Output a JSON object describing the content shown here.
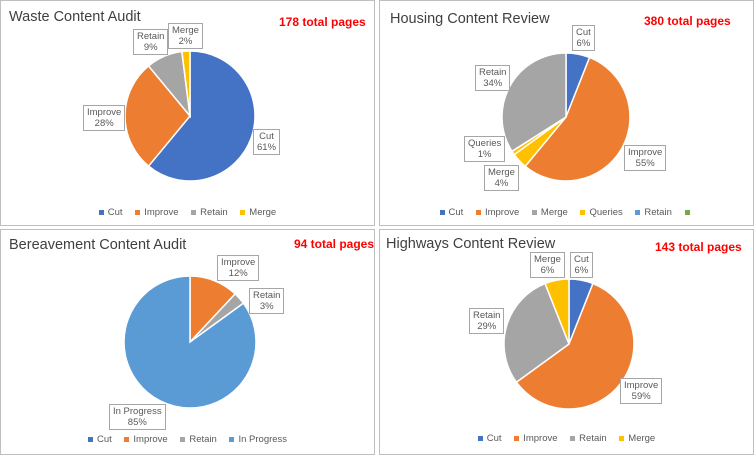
{
  "colors": {
    "Cut": "#4472c4",
    "Improve": "#ed7d31",
    "Retain": "#a5a5a5",
    "Merge": "#ffc000",
    "Queries": "#ffc000",
    "In Progress": "#5b9bd5",
    "blank": "#70ad47"
  },
  "panels": [
    {
      "title": "Waste Content Audit",
      "total": "178 total pages",
      "chart_data": {
        "type": "pie",
        "title": "Waste Content Audit",
        "slices": [
          {
            "name": "Cut",
            "value": 61,
            "label": "61%"
          },
          {
            "name": "Improve",
            "value": 28,
            "label": "28%"
          },
          {
            "name": "Retain",
            "value": 9,
            "label": "9%"
          },
          {
            "name": "Merge",
            "value": 2,
            "label": "2%"
          }
        ],
        "legend": [
          "Cut",
          "Improve",
          "Retain",
          "Merge"
        ],
        "legend_position": "bottom"
      }
    },
    {
      "title": "Housing Content Review",
      "total": "380 total pages",
      "chart_data": {
        "type": "pie",
        "title": "Housing Content Review",
        "slices": [
          {
            "name": "Cut",
            "value": 6,
            "label": "6%"
          },
          {
            "name": "Improve",
            "value": 55,
            "label": "55%"
          },
          {
            "name": "Merge",
            "value": 4,
            "label": "4%"
          },
          {
            "name": "Queries",
            "value": 1,
            "label": "1%"
          },
          {
            "name": "Retain",
            "value": 34,
            "label": "34%"
          }
        ],
        "legend": [
          "Cut",
          "Improve",
          "Merge",
          "Queries",
          "Retain",
          ""
        ],
        "legend_position": "bottom"
      }
    },
    {
      "title": "Bereavement Content Audit",
      "total": "94 total pages",
      "chart_data": {
        "type": "pie",
        "title": "Bereavement Content Audit",
        "slices": [
          {
            "name": "Improve",
            "value": 12,
            "label": "12%"
          },
          {
            "name": "Retain",
            "value": 3,
            "label": "3%"
          },
          {
            "name": "In Progress",
            "value": 85,
            "label": "85%"
          }
        ],
        "legend": [
          "Cut",
          "Improve",
          "Retain",
          "In Progress"
        ],
        "legend_position": "bottom"
      }
    },
    {
      "title": "Highways Content Review",
      "total": "143 total pages",
      "chart_data": {
        "type": "pie",
        "title": "Highways Content Review",
        "slices": [
          {
            "name": "Cut",
            "value": 6,
            "label": "6%"
          },
          {
            "name": "Improve",
            "value": 59,
            "label": "59%"
          },
          {
            "name": "Retain",
            "value": 29,
            "label": "29%"
          },
          {
            "name": "Merge",
            "value": 6,
            "label": "6%"
          }
        ],
        "legend": [
          "Cut",
          "Improve",
          "Retain",
          "Merge"
        ],
        "legend_position": "bottom"
      }
    }
  ]
}
